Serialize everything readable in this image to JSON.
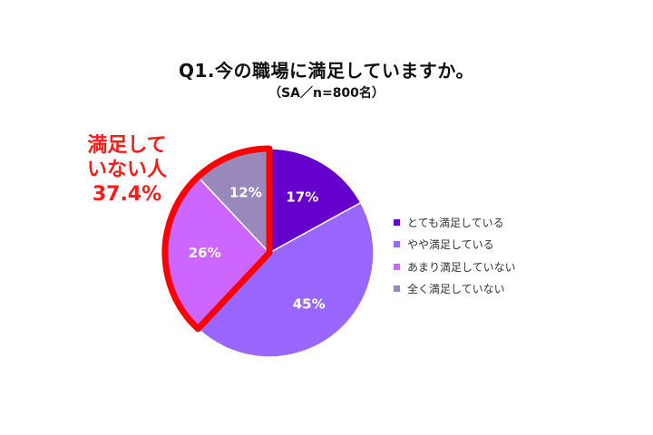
{
  "chart_data": {
    "type": "pie",
    "title": "Q1.今の職場に満足していますか。",
    "subtitle": "（SA／n=800名）",
    "categories": [
      "とても満足している",
      "やや満足している",
      "あまり満足していない",
      "全く満足していない"
    ],
    "values": [
      17,
      45,
      26,
      12
    ],
    "value_labels": [
      "17%",
      "45%",
      "26%",
      "12%"
    ],
    "colors": [
      "#6600cc",
      "#9966ff",
      "#cc66ff",
      "#9988bb"
    ],
    "legend_position": "right",
    "annotation": {
      "lines": [
        "満足して",
        "いない人",
        "37.4%"
      ],
      "highlight_categories": [
        "あまり満足していない",
        "全く満足していない"
      ],
      "color": "#ff0000"
    }
  }
}
